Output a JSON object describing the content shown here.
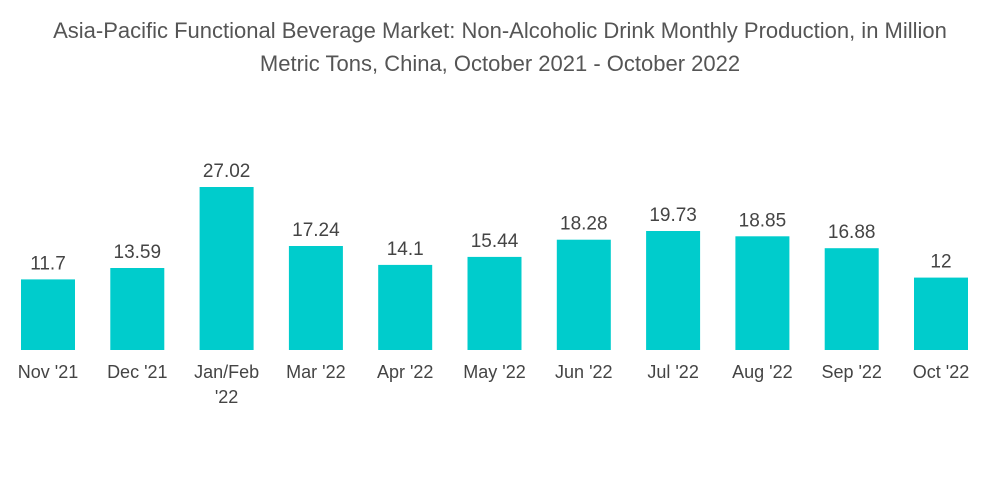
{
  "chart_data": {
    "type": "bar",
    "title_lines": [
      "Asia-Pacific Functional Beverage Market: Non-Alcoholic Drink Monthly Production, in Million",
      "Metric Tons, China, October 2021 - October 2022"
    ],
    "categories": [
      [
        "Nov '21"
      ],
      [
        "Dec '21"
      ],
      [
        "Jan/Feb",
        "'22"
      ],
      [
        "Mar '22"
      ],
      [
        "Apr '22"
      ],
      [
        "May '22"
      ],
      [
        "Jun '22"
      ],
      [
        "Jul '22"
      ],
      [
        "Aug '22"
      ],
      [
        "Sep '22"
      ],
      [
        "Oct '22"
      ]
    ],
    "values": [
      11.7,
      13.59,
      27.02,
      17.24,
      14.1,
      15.44,
      18.28,
      19.73,
      18.85,
      16.88,
      12
    ],
    "value_labels": [
      "11.7",
      "13.59",
      "27.02",
      "17.24",
      "14.1",
      "15.44",
      "18.28",
      "19.73",
      "18.85",
      "16.88",
      "12"
    ],
    "xlabel": "",
    "ylabel": "",
    "ylim": [
      0,
      27.02
    ],
    "grid": false,
    "bar_color": "#00CCCC"
  }
}
